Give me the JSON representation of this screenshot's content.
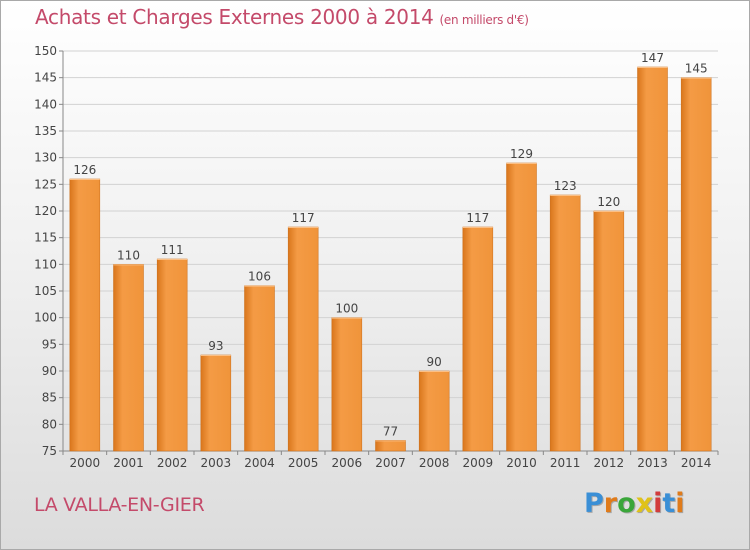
{
  "chart_data": {
    "type": "bar",
    "title": "Achats et Charges Externes 2000 à 2014",
    "subtitle": "(en milliers d'€)",
    "categories": [
      "2000",
      "2001",
      "2002",
      "2003",
      "2004",
      "2005",
      "2006",
      "2007",
      "2008",
      "2009",
      "2010",
      "2011",
      "2012",
      "2013",
      "2014"
    ],
    "values": [
      126,
      110,
      111,
      93,
      106,
      117,
      100,
      77,
      90,
      117,
      129,
      123,
      120,
      147,
      145
    ],
    "ylim": [
      75,
      150
    ],
    "yticks": [
      75,
      80,
      85,
      90,
      95,
      100,
      105,
      110,
      115,
      120,
      125,
      130,
      135,
      140,
      145,
      150
    ],
    "grid": true,
    "data_labels": true,
    "xlabel": "",
    "ylabel": "",
    "bar_color": "#f0943a",
    "bar_color_dark": "#d9761c"
  },
  "footer": {
    "commune": "LA VALLA-EN-GIER",
    "brand": "Proxiti",
    "brand_letters": [
      {
        "ch": "P",
        "color": "#3a8fd6"
      },
      {
        "ch": "r",
        "color": "#e07b1a"
      },
      {
        "ch": "o",
        "color": "#3aa63a"
      },
      {
        "ch": "x",
        "color": "#e0c21a"
      },
      {
        "ch": "i",
        "color": "#d23c3c"
      },
      {
        "ch": "t",
        "color": "#3a8fd6"
      },
      {
        "ch": "i",
        "color": "#e07b1a"
      }
    ]
  }
}
